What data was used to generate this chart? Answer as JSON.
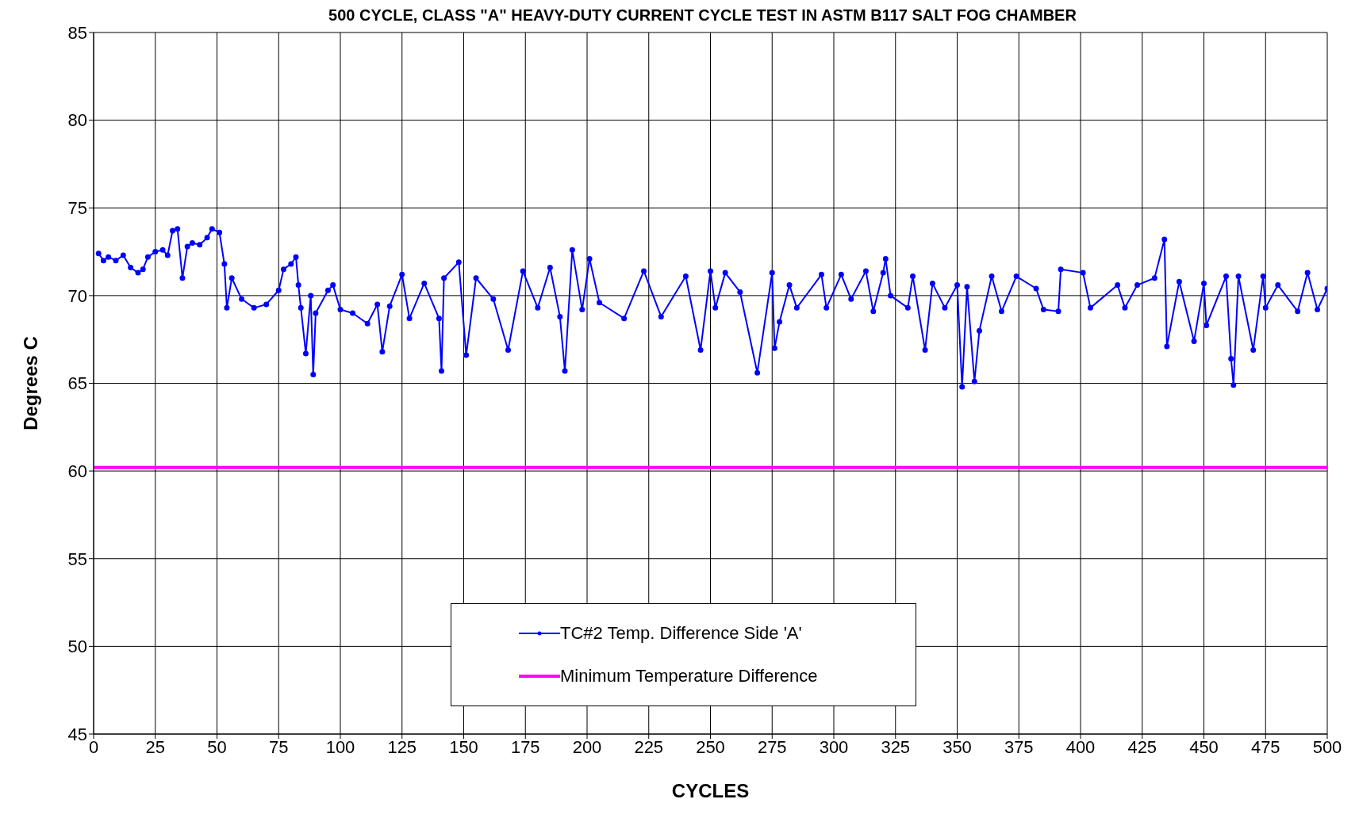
{
  "chart_data": {
    "type": "line",
    "title": "500 CYCLE, CLASS \"A\" HEAVY-DUTY CURRENT CYCLE TEST IN ASTM B117 SALT FOG CHAMBER",
    "xlabel": "CYCLES",
    "ylabel": "Degrees C",
    "x": [
      2,
      4,
      6,
      9,
      12,
      15,
      18,
      20,
      22,
      25,
      28,
      30,
      32,
      34,
      36,
      38,
      40,
      43,
      46,
      48,
      51,
      53,
      54,
      56,
      60,
      65,
      70,
      75,
      77,
      80,
      82,
      83,
      84,
      86,
      88,
      89,
      90,
      95,
      97,
      100,
      105,
      111,
      115,
      117,
      120,
      125,
      128,
      134,
      140,
      141,
      142,
      148,
      151,
      155,
      162,
      168,
      174,
      180,
      185,
      189,
      191,
      194,
      198,
      201,
      205,
      215,
      223,
      230,
      240,
      246,
      250,
      252,
      256,
      262,
      269,
      275,
      276,
      278,
      282,
      285,
      295,
      297,
      303,
      307,
      313,
      316,
      320,
      321,
      323,
      330,
      332,
      337,
      340,
      345,
      350,
      352,
      354,
      357,
      359,
      364,
      368,
      374,
      382,
      385,
      391,
      392,
      401,
      404,
      415,
      418,
      423,
      430,
      434,
      435,
      440,
      446,
      450,
      451,
      459,
      461,
      462,
      464,
      470,
      474,
      475,
      480,
      488,
      492,
      496,
      500
    ],
    "series": [
      {
        "name": "TC#2 Temp. Difference Side 'A'",
        "color": "#0000ff",
        "values": [
          72.4,
          72,
          72.2,
          72,
          72.3,
          71.6,
          71.3,
          71.5,
          72.2,
          72.5,
          72.6,
          72.3,
          73.7,
          73.8,
          71,
          72.8,
          73,
          72.9,
          73.3,
          73.8,
          73.6,
          71.8,
          69.3,
          71,
          69.8,
          69.3,
          69.5,
          70.3,
          71.5,
          71.8,
          72.2,
          70.6,
          69.3,
          66.7,
          70,
          65.5,
          69,
          70.3,
          70.6,
          69.2,
          69,
          68.4,
          69.5,
          66.8,
          69.4,
          71.2,
          68.7,
          70.7,
          68.7,
          65.7,
          71,
          71.9,
          66.6,
          71,
          69.8,
          66.9,
          71.4,
          69.3,
          71.6,
          68.8,
          65.7,
          72.6,
          69.2,
          72.1,
          69.6,
          68.7,
          71.4,
          68.8,
          71.1,
          66.9,
          71.4,
          69.3,
          71.3,
          70.2,
          65.6,
          71.3,
          67,
          68.5,
          70.6,
          69.3,
          71.2,
          69.3,
          71.2,
          69.8,
          71.4,
          69.1,
          71.3,
          72.1,
          70,
          69.3,
          71.1,
          66.9,
          70.7,
          69.3,
          70.6,
          64.8,
          70.5,
          65.1,
          68,
          71.1,
          69.1,
          71.1,
          70.4,
          69.2,
          69.1,
          71.5,
          71.3,
          69.3,
          70.6,
          69.3,
          70.6,
          71,
          73.2,
          67.1,
          70.8,
          67.4,
          70.7,
          68.3,
          71.1,
          66.4,
          64.9,
          71.1,
          66.9,
          71.1,
          69.3,
          70.6,
          69.1,
          71.3,
          69.2,
          70.4
        ]
      }
    ],
    "xlim": [
      0,
      500
    ],
    "xticks": [
      0,
      25,
      50,
      75,
      100,
      125,
      150,
      175,
      200,
      225,
      250,
      275,
      300,
      325,
      350,
      375,
      400,
      425,
      450,
      475,
      500
    ],
    "ylim": [
      45,
      85
    ],
    "yticks": [
      45,
      50,
      55,
      60,
      65,
      70,
      75,
      80,
      85
    ],
    "ref_lines": [
      {
        "axis": "y",
        "value": 60.2,
        "label": "Minimum Temperature Difference",
        "color": "#ff00ff"
      }
    ],
    "grid": true,
    "legend": "bottom",
    "marker": "circle",
    "line_style": "solid"
  }
}
